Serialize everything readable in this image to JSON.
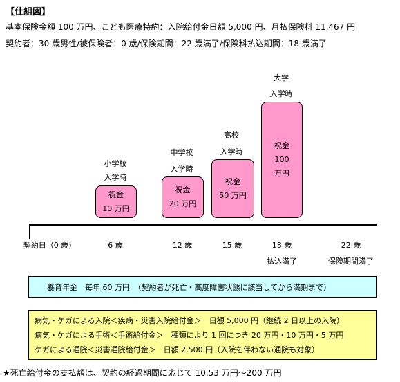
{
  "title": "【仕組図】",
  "header_lines": [
    "基本保険金額 100 万円、こども医療特約：入院給付金日額 5,000 円、月払保険料 11,467 円",
    "契約者：30 歳男性/被保険者：0 歳/保険期間：22 歳満了/保険料払込期間：18 歳満了"
  ],
  "stages": [
    {
      "school": "小学校",
      "label": "入学時",
      "box_line1": "祝金",
      "box_line2": "10 万円"
    },
    {
      "school": "中学校",
      "label": "入学時",
      "box_line1": "祝金",
      "box_line2": "20 万円"
    },
    {
      "school": "高校",
      "label": "入学時",
      "box_line1": "祝金",
      "box_line2": "50 万円"
    },
    {
      "school": "大学",
      "label": "入学時",
      "box_line1": "祝金",
      "box_line2": "100",
      "box_line3": "万円"
    }
  ],
  "timeline": [
    {
      "label": "契約日（0 歳）",
      "sub": ""
    },
    {
      "label": "6 歳",
      "sub": ""
    },
    {
      "label": "12 歳",
      "sub": ""
    },
    {
      "label": "15 歳",
      "sub": ""
    },
    {
      "label": "18 歳",
      "sub": "払込満了"
    },
    {
      "label": "22 歳",
      "sub": "保険期間満了"
    }
  ],
  "pension_band": "養育年金　毎年 60 万円　（契約者が死亡・高度障害状態に該当してから満期まで）",
  "medical_lines": [
    "病気・ケガによる入院＜疾病・災害入院給付金＞　日額 5,000 円（継続 2 日以上の入院）",
    "病気・ケガによる手術＜手術給付金＞　種類により 1 回につき 20 万円・10 万円・5 万円",
    "ケガによる通院＜災害通院給付金＞　日額 2,500 円（入院を伴わない通院も対象）"
  ],
  "footer": "★死亡給付金の支払額は、契約の経過期間に応じて 10.53 万円〜200 万円",
  "colors": {
    "gift_box": "#ff99cc",
    "pension_band": "#ccffff",
    "medical_band": "#ffff99"
  }
}
